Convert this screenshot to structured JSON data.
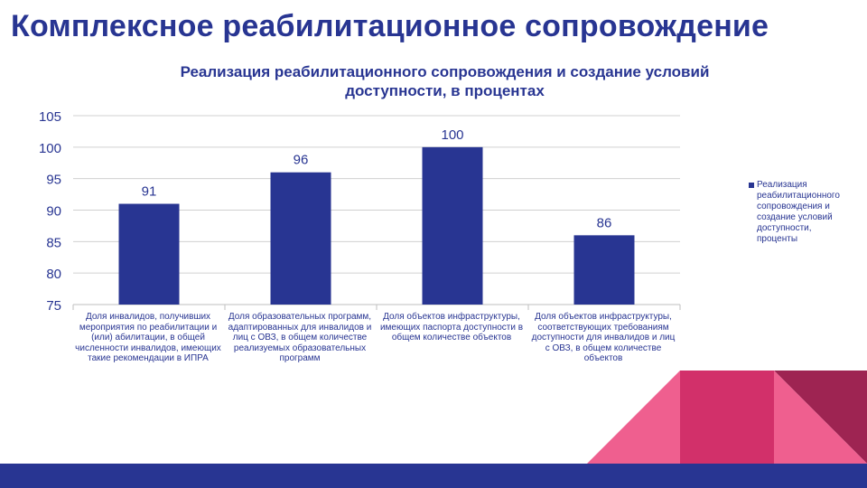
{
  "slide": {
    "title": "Комплексное реабилитационное сопровождение"
  },
  "colors": {
    "bar": "#283592",
    "title": "#283592",
    "accent_pink": "#ef5f8f",
    "accent_magenta": "#d2306a",
    "accent_wine": "#9e2452",
    "footer": "#283592"
  },
  "chart_data": {
    "type": "bar",
    "title": "Реализация реабилитационного сопровождения и создание условий доступности, в процентах",
    "categories": [
      "Доля инвалидов, получивших мероприятия по реабилитации и (или) абилитации, в общей численности инвалидов, имеющих такие рекомендации в ИПРА",
      "Доля образовательных программ, адаптированных для инвалидов и лиц с ОВЗ, в общем количестве реализуемых образовательных программ",
      "Доля объектов инфраструктуры, имеющих паспорта доступности в общем количестве объектов",
      "Доля объектов инфраструктуры, соответствующих требованиям доступности для инвалидов и лиц с ОВЗ, в общем количестве объектов"
    ],
    "series": [
      {
        "name": "Реализация реабилитационного сопровождения и создание условий доступности, проценты",
        "values": [
          91,
          96,
          100,
          86
        ]
      }
    ],
    "ylim": [
      75,
      105
    ],
    "yticks": [
      75,
      80,
      85,
      90,
      95,
      100,
      105
    ],
    "grid": true,
    "legend_position": "right",
    "data_labels": true
  }
}
